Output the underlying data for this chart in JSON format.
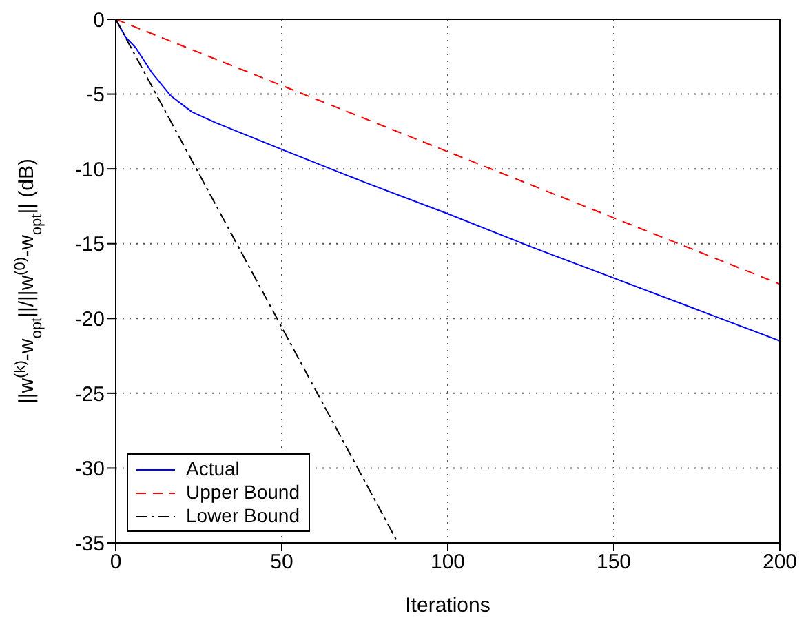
{
  "chart_data": {
    "type": "line",
    "xlabel": "Iterations",
    "ylabel": "||w$^{(k)}$-w$_{opt}$||/||w$^{(0)}$-w$_{opt}$|| (dB)",
    "xlim": [
      0,
      200
    ],
    "xticks": [
      0,
      50,
      100,
      150,
      200
    ],
    "ylim": [
      -35,
      0
    ],
    "yticks": [
      -35,
      -30,
      -25,
      -20,
      -15,
      -10,
      -5,
      0
    ],
    "grid": true,
    "legend": "bottom left",
    "marker": "none",
    "series": [
      {
        "name": "Actual",
        "color": "#0000ff",
        "line_style": "solid",
        "x": [
          0,
          3,
          6,
          11,
          16.5,
          23,
          30,
          40,
          50,
          75,
          100,
          125,
          150,
          175,
          200
        ],
        "values": [
          0,
          -1.2,
          -1.9,
          -3.6,
          -5.1,
          -6.2,
          -6.9,
          -7.8,
          -8.7,
          -10.9,
          -13.0,
          -15.2,
          -17.3,
          -19.4,
          -21.5
        ]
      },
      {
        "name": "Upper Bound",
        "color": "#ff0000",
        "line_style": "dashed",
        "x": [
          0,
          200
        ],
        "values": [
          0,
          -17.7
        ]
      },
      {
        "name": "Lower Bound",
        "color": "#000000",
        "line_style": "dashdot",
        "x": [
          0,
          85
        ],
        "values": [
          0,
          -35
        ]
      }
    ]
  }
}
